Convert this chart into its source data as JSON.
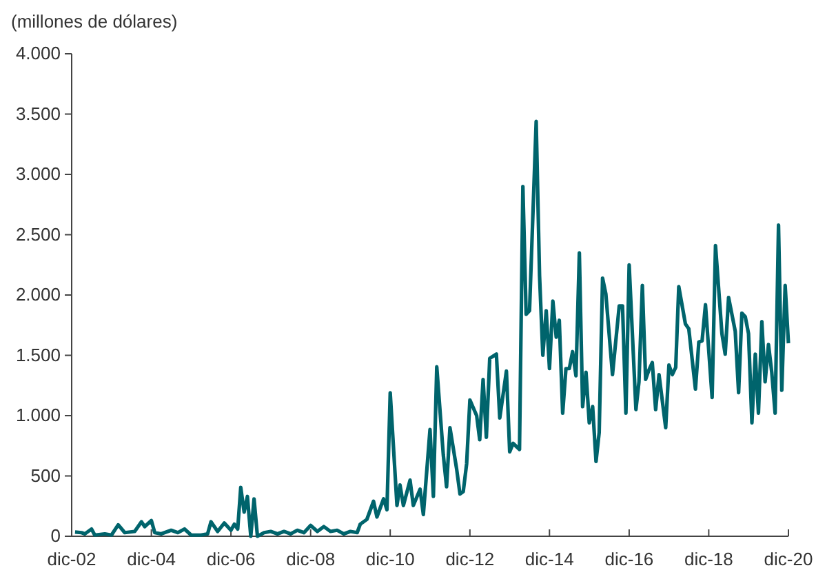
{
  "chart_data": {
    "type": "line",
    "ylabel": "(millones de dólares)",
    "xlim": [
      "2002-12",
      "2020-12"
    ],
    "xticks": [
      {
        "value": "2002-12",
        "label": "dic-02"
      },
      {
        "value": "2004-12",
        "label": "dic-04"
      },
      {
        "value": "2006-12",
        "label": "dic-06"
      },
      {
        "value": "2008-12",
        "label": "dic-08"
      },
      {
        "value": "2010-12",
        "label": "dic-10"
      },
      {
        "value": "2012-12",
        "label": "dic-12"
      },
      {
        "value": "2014-12",
        "label": "dic-14"
      },
      {
        "value": "2016-12",
        "label": "dic-16"
      },
      {
        "value": "2018-12",
        "label": "dic-18"
      },
      {
        "value": "2020-12",
        "label": "dic-20"
      }
    ],
    "ylim": [
      0,
      4000
    ],
    "yticks": [
      0,
      500,
      {
        "value": 1000,
        "label": "1.000"
      },
      {
        "value": 1500,
        "label": "1.500"
      },
      {
        "value": 2000,
        "label": "2.000"
      },
      {
        "value": 2500,
        "label": "2.500"
      },
      {
        "value": 3000,
        "label": "3.000"
      },
      {
        "value": 3500,
        "label": "3.500"
      },
      {
        "value": 4000,
        "label": "4.000"
      }
    ],
    "marker": "none",
    "line_style": "solid",
    "series": [
      {
        "color": "#00646c",
        "x": [
          "2003-01",
          "2003-03",
          "2003-04",
          "2003-06",
          "2003-07",
          "2003-10",
          "2003-12",
          "2004-02",
          "2004-04",
          "2004-07",
          "2004-09",
          "2004-10",
          "2004-12",
          "2005-01",
          "2005-03",
          "2005-06",
          "2005-08",
          "2005-10",
          "2005-12",
          "2006-03",
          "2006-05",
          "2006-06",
          "2006-08",
          "2006-10",
          "2006-12",
          "2007-01",
          "2007-02",
          "2007-03",
          "2007-04",
          "2007-05",
          "2007-06",
          "2007-07",
          "2007-08",
          "2007-10",
          "2007-12",
          "2008-02",
          "2008-04",
          "2008-06",
          "2008-08",
          "2008-10",
          "2008-12",
          "2009-02",
          "2009-04",
          "2009-06",
          "2009-08",
          "2009-10",
          "2009-12",
          "2010-02",
          "2010-03",
          "2010-05",
          "2010-07",
          "2010-08",
          "2010-10",
          "2010-11",
          "2010-12",
          "2011-02",
          "2011-03",
          "2011-04",
          "2011-06",
          "2011-07",
          "2011-09",
          "2011-10",
          "2011-12",
          "2012-01",
          "2012-02",
          "2012-04",
          "2012-05",
          "2012-06",
          "2012-08",
          "2012-09",
          "2012-10",
          "2012-11",
          "2012-12",
          "2013-02",
          "2013-03",
          "2013-04",
          "2013-05",
          "2013-06",
          "2013-08",
          "2013-09",
          "2013-11",
          "2013-12",
          "2014-01",
          "2014-03",
          "2014-04",
          "2014-05",
          "2014-06",
          "2014-08",
          "2014-09",
          "2014-10",
          "2014-11",
          "2014-12",
          "2015-01",
          "2015-02",
          "2015-03",
          "2015-04",
          "2015-05",
          "2015-06",
          "2015-07",
          "2015-08",
          "2015-09",
          "2015-10",
          "2015-11",
          "2015-12",
          "2016-01",
          "2016-02",
          "2016-03",
          "2016-04",
          "2016-05",
          "2016-07",
          "2016-09",
          "2016-10",
          "2016-11",
          "2016-12",
          "2017-02",
          "2017-03",
          "2017-04",
          "2017-05",
          "2017-06",
          "2017-07",
          "2017-08",
          "2017-09",
          "2017-11",
          "2017-12",
          "2018-01",
          "2018-02",
          "2018-03",
          "2018-05",
          "2018-06",
          "2018-08",
          "2018-09",
          "2018-10",
          "2018-11",
          "2019-01",
          "2019-02",
          "2019-04",
          "2019-05",
          "2019-06",
          "2019-08",
          "2019-09",
          "2019-10",
          "2019-11",
          "2019-12",
          "2020-01",
          "2020-02",
          "2020-03",
          "2020-04",
          "2020-05",
          "2020-06",
          "2020-07",
          "2020-08",
          "2020-09",
          "2020-10",
          "2020-11",
          "2020-12"
        ],
        "values": [
          35,
          30,
          20,
          60,
          10,
          20,
          10,
          95,
          30,
          40,
          120,
          80,
          130,
          30,
          20,
          50,
          30,
          60,
          10,
          10,
          20,
          120,
          40,
          110,
          50,
          100,
          60,
          405,
          200,
          330,
          0,
          310,
          0,
          30,
          40,
          20,
          40,
          20,
          50,
          30,
          90,
          40,
          80,
          40,
          50,
          20,
          40,
          30,
          100,
          140,
          290,
          160,
          310,
          220,
          1190,
          255,
          425,
          255,
          465,
          255,
          390,
          180,
          885,
          330,
          1405,
          675,
          410,
          900,
          560,
          350,
          370,
          600,
          1130,
          1000,
          800,
          1300,
          820,
          1475,
          1510,
          980,
          1370,
          700,
          770,
          720,
          2900,
          1840,
          1870,
          3440,
          2160,
          1500,
          1870,
          1390,
          1950,
          1650,
          1790,
          1020,
          1390,
          1390,
          1530,
          1330,
          2350,
          1075,
          1360,
          940,
          1075,
          620,
          860,
          2140,
          2010,
          1340,
          1910,
          1910,
          1020,
          2250,
          1050,
          1280,
          2080,
          1300,
          1380,
          1440,
          1050,
          1340,
          900,
          1420,
          1340,
          1400,
          2070,
          1760,
          1720,
          1220,
          1610,
          1620,
          1920,
          1150,
          2410,
          1680,
          1510,
          1980,
          1700,
          1190,
          1850,
          1820,
          1680,
          940,
          1510,
          1020,
          1780,
          1280,
          1590,
          1360,
          1020,
          2580,
          1210,
          2080,
          1600
        ]
      }
    ]
  }
}
